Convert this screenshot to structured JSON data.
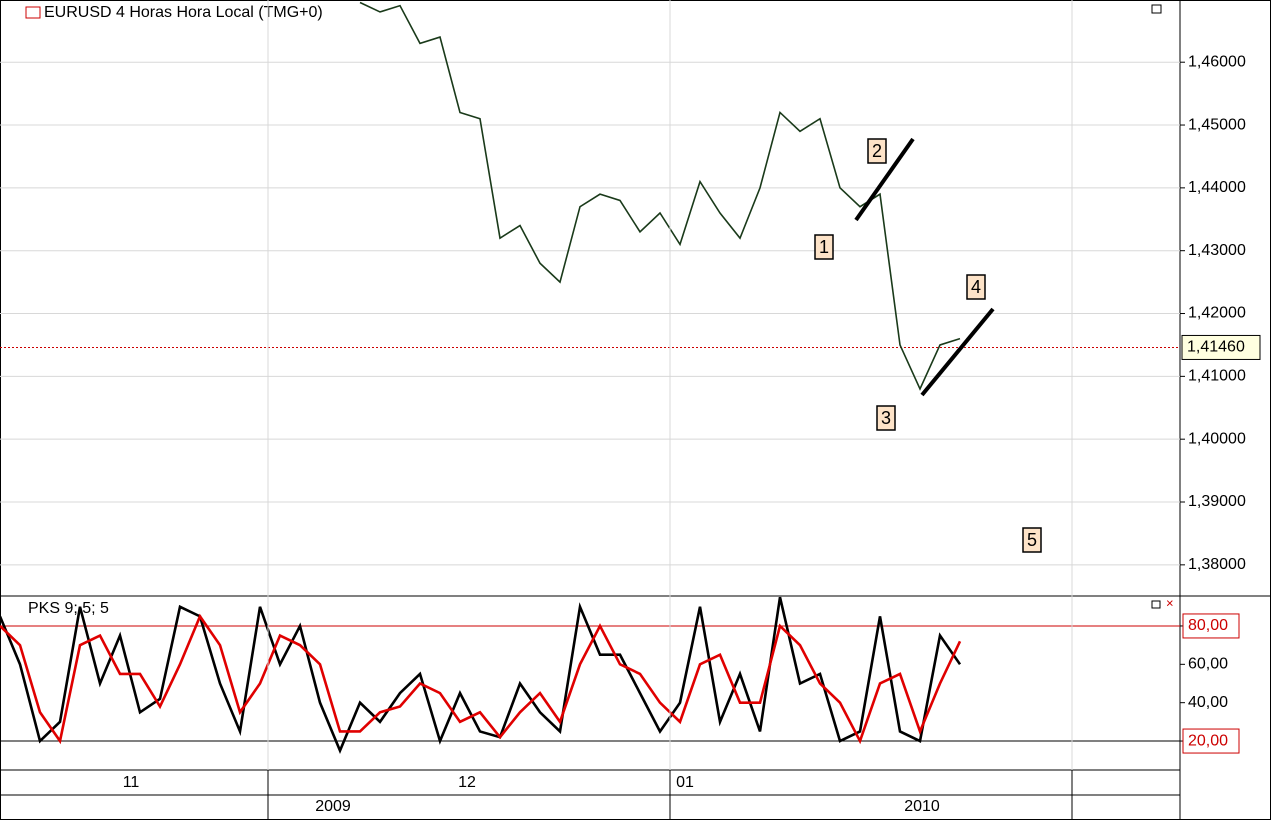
{
  "chart_data": [
    {
      "type": "line",
      "title": "EURUSD 4 Horas Hora Local (TMG+0)",
      "x": [
        18,
        19,
        20,
        21,
        22,
        23,
        24,
        25,
        26,
        27,
        28,
        29,
        30,
        31,
        32,
        33,
        34,
        35,
        36,
        37,
        38,
        39,
        40,
        41,
        42,
        43,
        44,
        45,
        46,
        47,
        48
      ],
      "series": [
        {
          "color": "#1a3a1a",
          "values": [
            1.4695,
            1.468,
            1.469,
            1.463,
            1.464,
            1.452,
            1.451,
            1.432,
            1.434,
            1.428,
            1.425,
            1.437,
            1.439,
            1.438,
            1.433,
            1.436,
            1.431,
            1.441,
            1.436,
            1.432,
            1.44,
            1.452,
            1.449,
            1.451,
            1.44,
            1.437,
            1.439,
            1.415,
            1.408,
            1.415,
            1.416
          ]
        }
      ],
      "xlim": [
        0,
        59
      ],
      "xticks": [
        13.4,
        33.5,
        53.6
      ],
      "x_labels": [
        {
          "value": 6.55,
          "label": "11"
        },
        {
          "value": 23.35,
          "label": "12"
        },
        {
          "value": 34.25,
          "label": "01"
        }
      ],
      "year_labels": [
        {
          "value": 16.65,
          "label": "2009"
        },
        {
          "value": 46.1,
          "label": "2010"
        }
      ],
      "ylim": [
        1.3752,
        1.4699
      ],
      "yticks": [
        {
          "value": 1.38,
          "label": "1,38000"
        },
        {
          "value": 1.39,
          "label": "1,39000"
        },
        {
          "value": 1.4,
          "label": "1,40000"
        },
        {
          "value": 1.41,
          "label": "1,41000"
        },
        {
          "value": 1.42,
          "label": "1,42000"
        },
        {
          "value": 1.43,
          "label": "1,43000"
        },
        {
          "value": 1.44,
          "label": "1,44000"
        },
        {
          "value": 1.45,
          "label": "1,45000"
        },
        {
          "value": 1.46,
          "label": "1,46000"
        }
      ],
      "current_price": {
        "value": 1.4146,
        "label": "1,41460"
      },
      "grid": true,
      "annotations": [
        "1",
        "2",
        "3",
        "4",
        "5"
      ]
    },
    {
      "type": "line",
      "title": "PKS 9; 5; 5",
      "x": [
        0,
        1,
        2,
        3,
        4,
        5,
        6,
        7,
        8,
        9,
        10,
        11,
        12,
        13,
        14,
        15,
        16,
        17,
        18,
        19,
        20,
        21,
        22,
        23,
        24,
        25,
        26,
        27,
        28,
        29,
        30,
        31,
        32,
        33,
        34,
        35,
        36,
        37,
        38,
        39,
        40,
        41,
        42,
        43,
        44,
        45,
        46,
        47,
        48
      ],
      "series": [
        {
          "color": "#000000",
          "values": [
            85,
            60,
            20,
            30,
            90,
            50,
            75,
            35,
            42,
            90,
            85,
            50,
            25,
            90,
            60,
            80,
            40,
            15,
            40,
            30,
            45,
            55,
            20,
            45,
            25,
            22,
            50,
            35,
            25,
            90,
            65,
            65,
            45,
            25,
            40,
            90,
            30,
            55,
            25,
            95,
            50,
            55,
            20,
            25,
            85,
            25,
            20,
            75,
            60
          ]
        },
        {
          "color": "#e00000",
          "values": [
            80,
            70,
            35,
            20,
            70,
            75,
            55,
            55,
            38,
            60,
            85,
            70,
            35,
            50,
            75,
            70,
            60,
            25,
            25,
            35,
            38,
            50,
            45,
            30,
            35,
            22,
            35,
            45,
            30,
            60,
            80,
            60,
            55,
            40,
            30,
            60,
            65,
            40,
            40,
            80,
            70,
            50,
            40,
            20,
            50,
            55,
            25,
            50,
            72
          ]
        }
      ],
      "xlim": [
        0,
        59
      ],
      "ylim": [
        4.9,
        95.1
      ],
      "yticks": [
        {
          "value": 20,
          "label": "20,00"
        },
        {
          "value": 40,
          "label": "40,00"
        },
        {
          "value": 60,
          "label": "60,00"
        },
        {
          "value": 80,
          "label": "80,00"
        }
      ],
      "levels": [
        80,
        20
      ]
    }
  ]
}
